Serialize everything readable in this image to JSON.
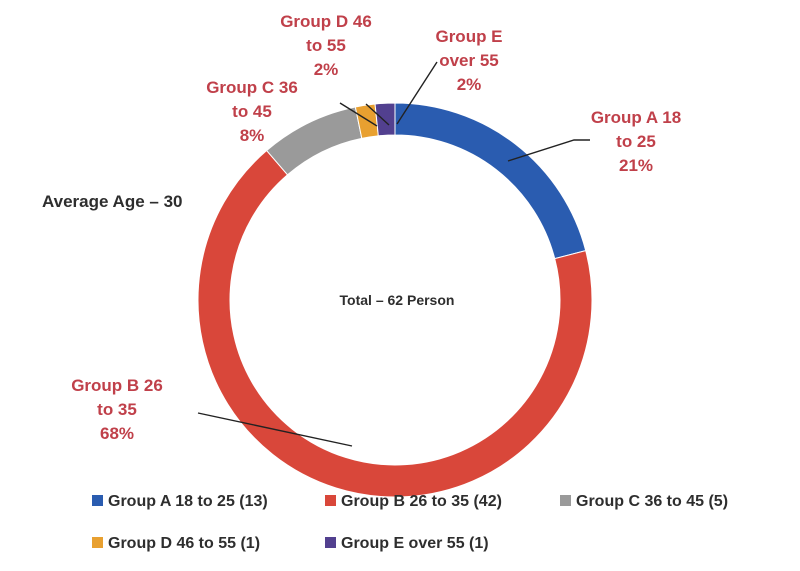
{
  "chart_data": {
    "type": "pie",
    "variant": "donut",
    "categories": [
      "Group A 18 to 25",
      "Group B 26 to 35",
      "Group C 36 to 45",
      "Group D 46 to 55",
      "Group E over 55"
    ],
    "values": [
      13,
      42,
      5,
      1,
      1
    ],
    "slice_label_lines": [
      [
        "Group A  18",
        "to 25",
        "21%"
      ],
      [
        "Group B  26",
        "to 35",
        "68%"
      ],
      [
        "Group C  36",
        "to 45",
        "8%"
      ],
      [
        "Group D  46",
        "to 55",
        "2%"
      ],
      [
        "Group E",
        "over 55",
        "2%"
      ]
    ],
    "legend": [
      {
        "prefix": "Group A",
        "range": "18 to 25",
        "count": "(13)"
      },
      {
        "prefix": "Group B",
        "range": "26 to 35",
        "count": "(42)"
      },
      {
        "prefix": "Group C",
        "range": "36 to 45",
        "count": "(5)"
      },
      {
        "prefix": "Group D",
        "range": "46 to 55",
        "count": "(1)"
      },
      {
        "prefix": "Group E",
        "range": "over 55",
        "count": "(1)"
      }
    ],
    "legend_position": "bottom",
    "colors": [
      "#2a5cb0",
      "#d9473a",
      "#9a9a9a",
      "#e8a030",
      "#52408f"
    ],
    "annotations": {
      "average_age": "Average Age – 30",
      "total": "Total – 62 Person"
    }
  }
}
